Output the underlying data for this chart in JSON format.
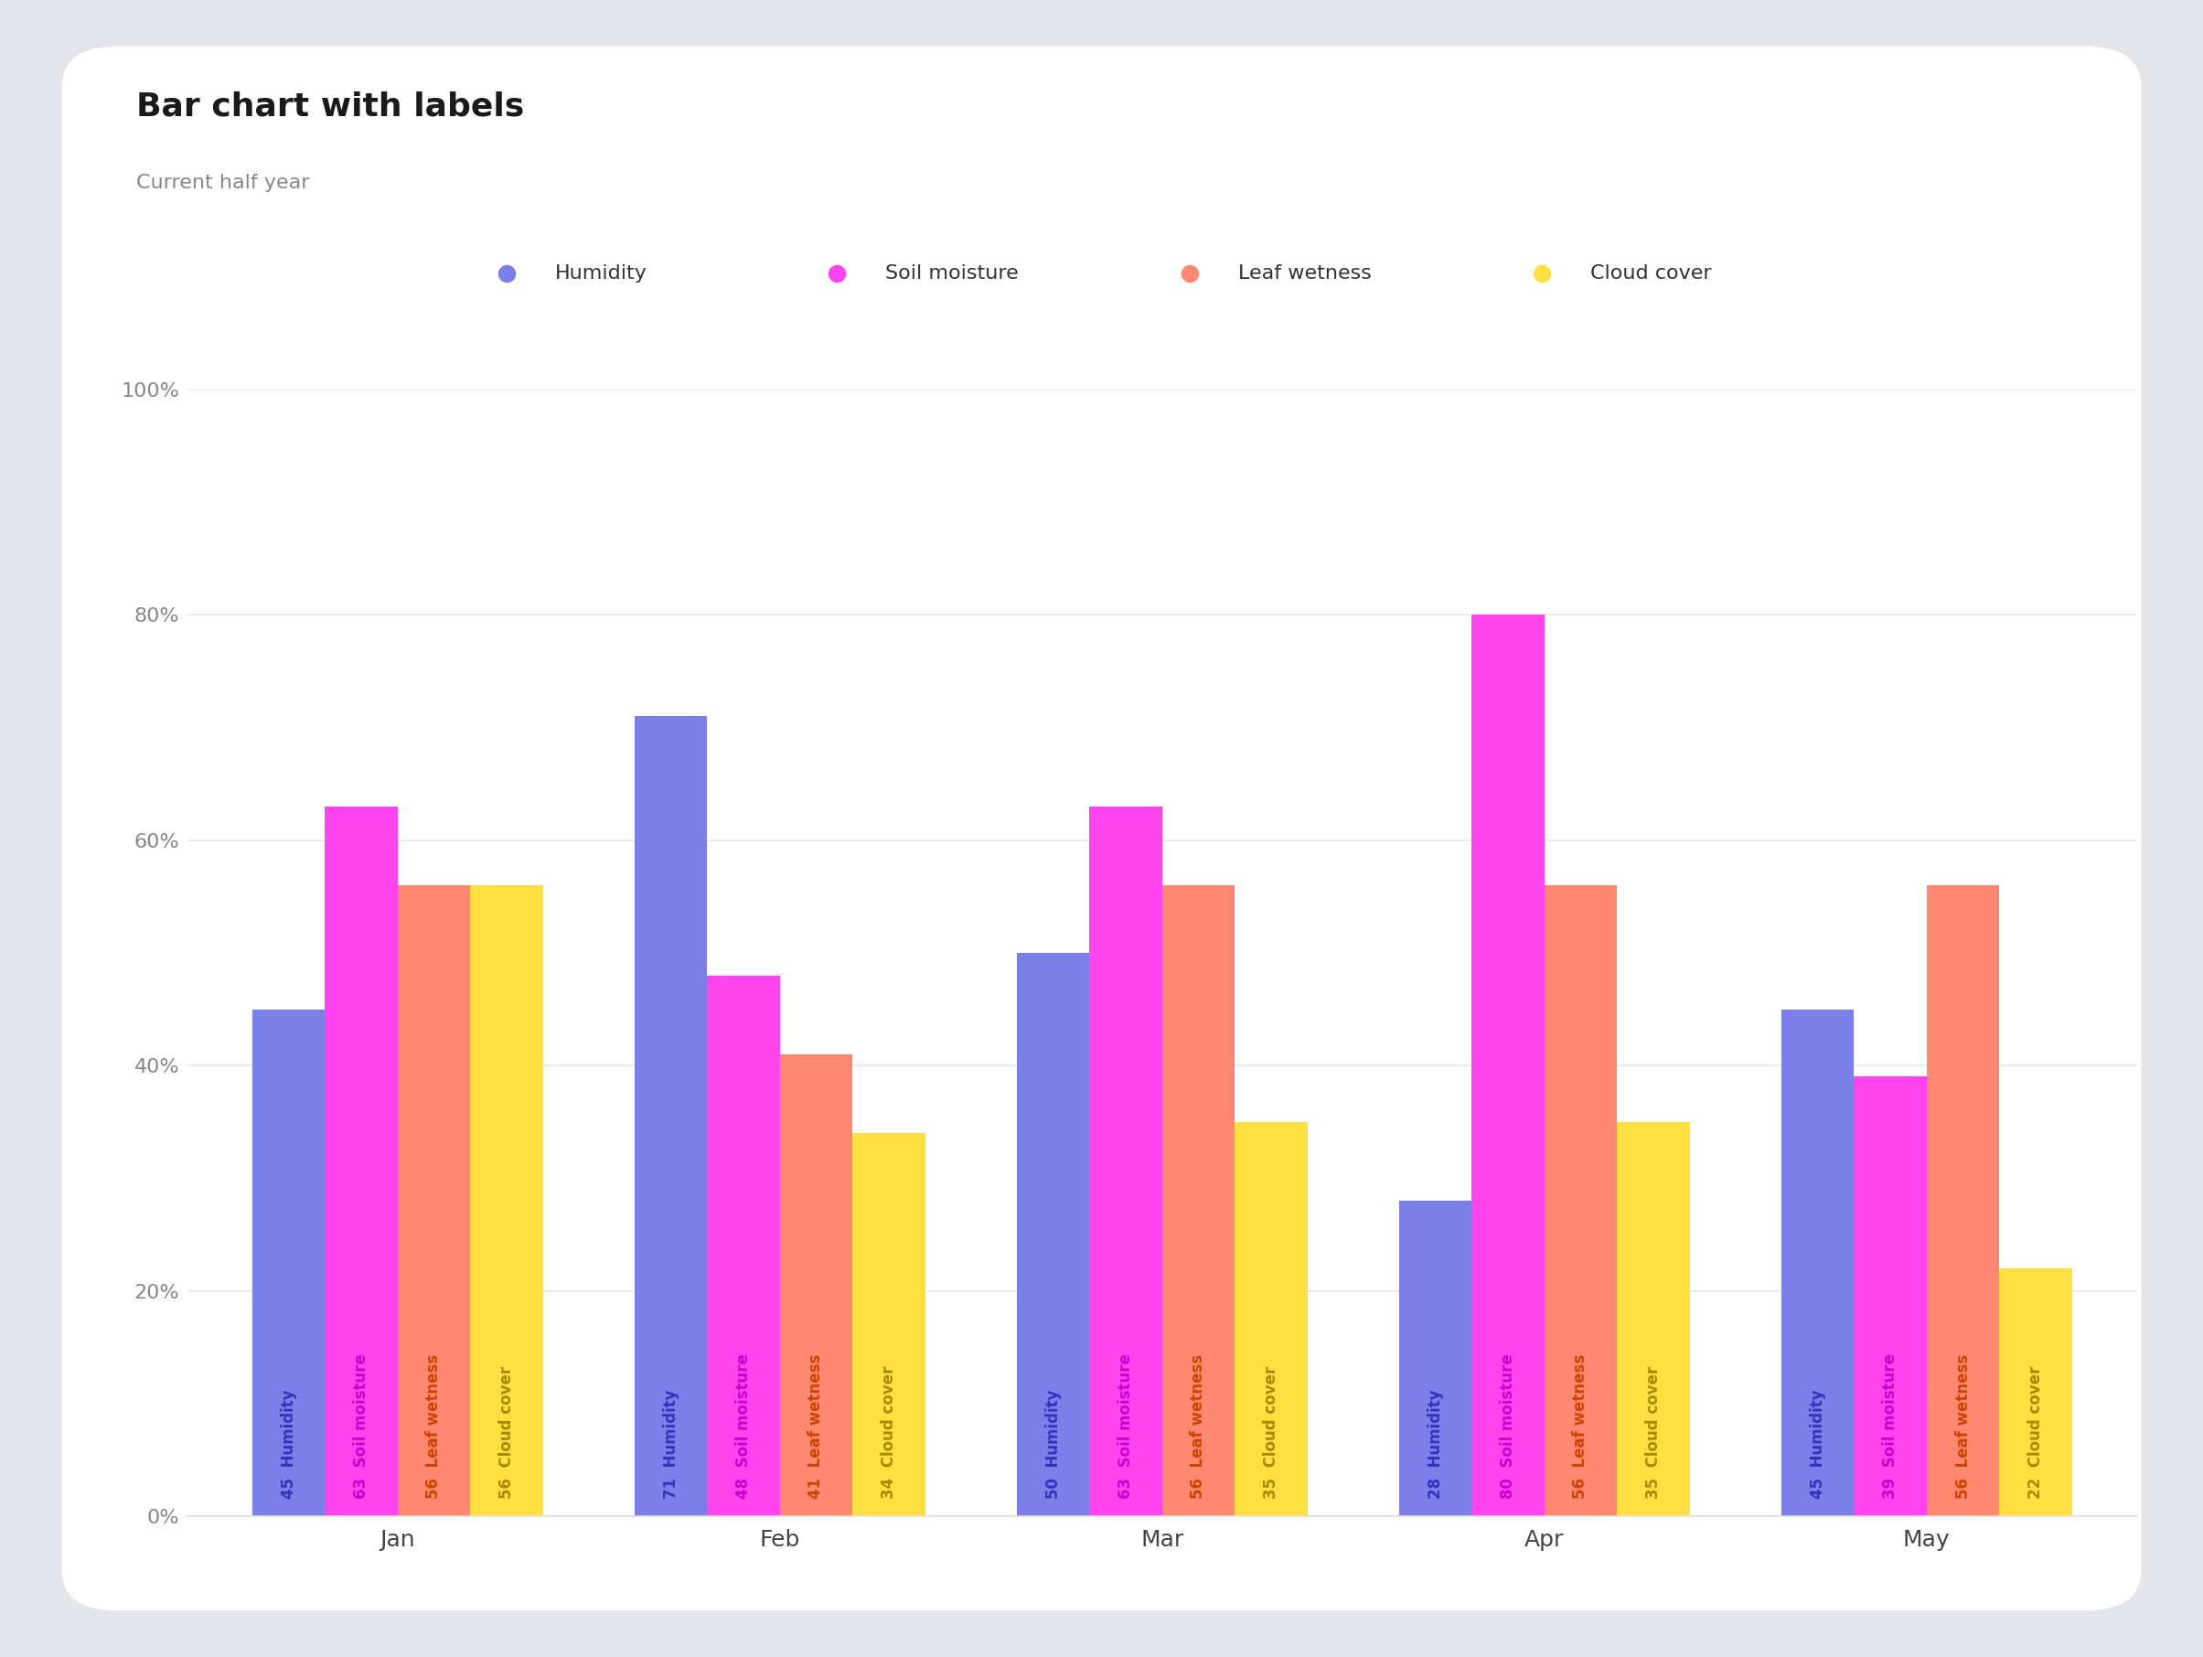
{
  "title": "Bar chart with labels",
  "subtitle": "Current half year",
  "categories": [
    "Jan",
    "Feb",
    "Mar",
    "Apr",
    "May"
  ],
  "series": [
    {
      "name": "Humidity",
      "color": "#7B80E8",
      "label_color": "#3333bb",
      "values": [
        45,
        71,
        50,
        28,
        45
      ]
    },
    {
      "name": "Soil moisture",
      "color": "#FF44EE",
      "label_color": "#cc00cc",
      "values": [
        63,
        48,
        63,
        80,
        39
      ]
    },
    {
      "name": "Leaf wetness",
      "color": "#FF8870",
      "label_color": "#cc4400",
      "values": [
        56,
        41,
        56,
        56,
        56
      ]
    },
    {
      "name": "Cloud cover",
      "color": "#FFE040",
      "label_color": "#aa8800",
      "values": [
        56,
        34,
        35,
        35,
        22
      ]
    }
  ],
  "ylim": [
    0,
    100
  ],
  "yticks": [
    0,
    20,
    40,
    60,
    80,
    100
  ],
  "ytick_labels": [
    "0%",
    "20%",
    "40%",
    "60%",
    "80%",
    "100%"
  ],
  "outer_bg": "#e4e4eb",
  "card_bg": "#ffffff",
  "grid_color": "#e8e8e8",
  "axis_line_color": "#e0e0e0",
  "title_fontsize": 26,
  "subtitle_fontsize": 16,
  "tick_fontsize": 16,
  "legend_fontsize": 16,
  "bar_label_fontsize": 12,
  "bar_width": 0.19,
  "group_width": 1.0
}
